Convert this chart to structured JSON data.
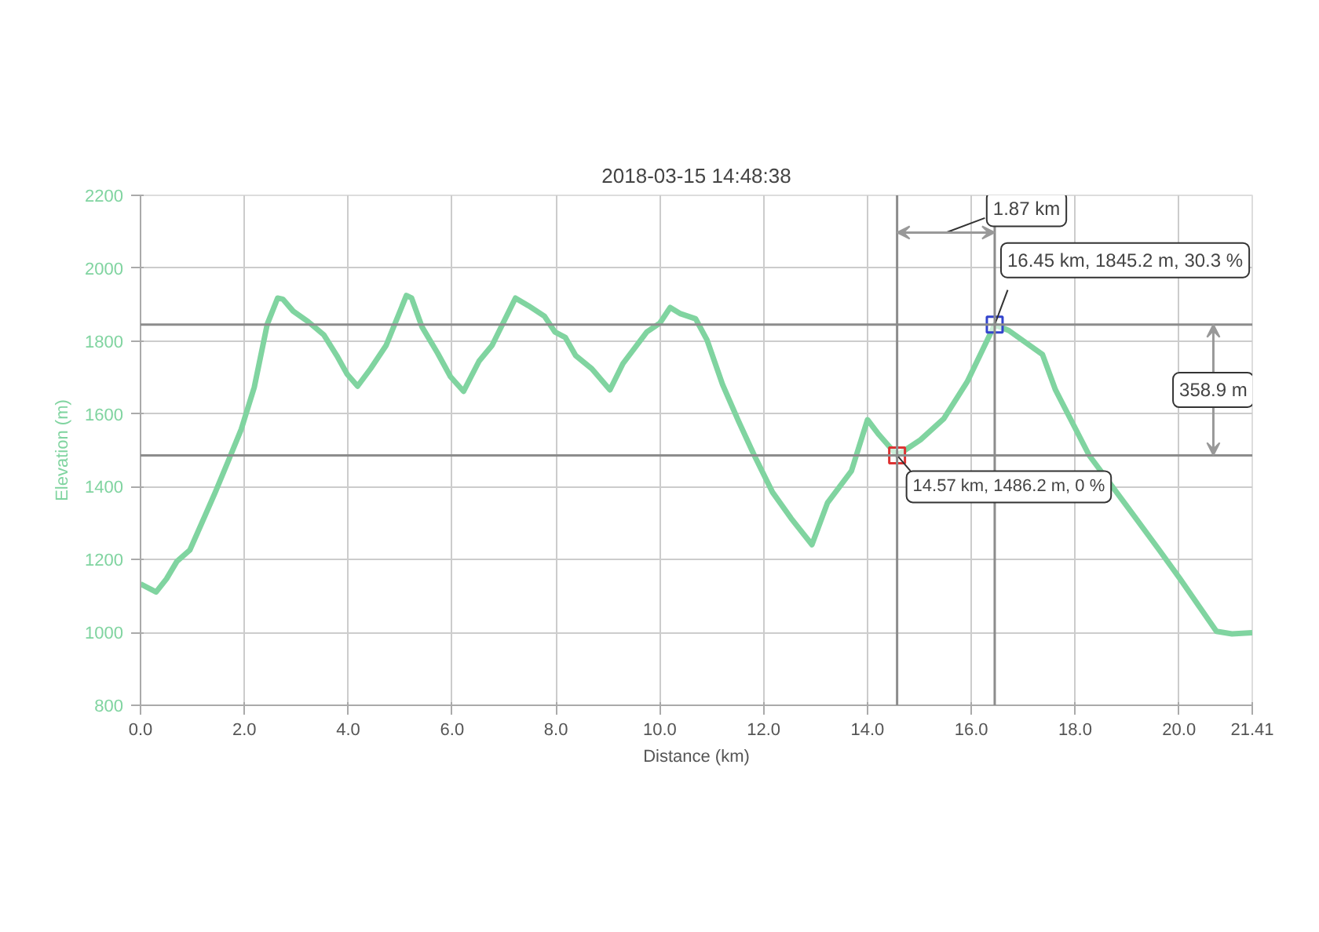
{
  "chart_data": {
    "type": "line",
    "title": "2018-03-15 14:48:38",
    "xlabel": "Distance (km)",
    "ylabel": "Elevation (m)",
    "xlim": [
      0,
      21.41
    ],
    "ylim": [
      800,
      2200
    ],
    "xticks": [
      {
        "value": 0,
        "label": "0.0"
      },
      {
        "value": 2,
        "label": "2.0"
      },
      {
        "value": 4,
        "label": "4.0"
      },
      {
        "value": 6,
        "label": "6.0"
      },
      {
        "value": 8,
        "label": "8.0"
      },
      {
        "value": 10,
        "label": "10.0"
      },
      {
        "value": 12,
        "label": "12.0"
      },
      {
        "value": 14,
        "label": "14.0"
      },
      {
        "value": 16,
        "label": "16.0"
      },
      {
        "value": 18,
        "label": "18.0"
      },
      {
        "value": 20,
        "label": "20.0"
      },
      {
        "value": 21.41,
        "label": "21.41"
      }
    ],
    "yticks": [
      800,
      1000,
      1200,
      1400,
      1600,
      1800,
      2000,
      2200
    ],
    "grid": true,
    "line_style": "solid",
    "marker": "none",
    "series": [
      {
        "color": "#80d4a0",
        "x": [
          0,
          0.3,
          0.5,
          0.7,
          0.95,
          1.24,
          1.44,
          1.69,
          1.94,
          2.19,
          2.44,
          2.64,
          2.74,
          2.94,
          3.23,
          3.53,
          3.78,
          3.98,
          4.18,
          4.43,
          4.73,
          5.12,
          5.22,
          5.42,
          5.72,
          5.97,
          6.22,
          6.52,
          6.77,
          7.22,
          7.47,
          7.78,
          7.98,
          8.18,
          8.38,
          8.69,
          9.04,
          9.29,
          9.75,
          10.0,
          10.2,
          10.4,
          10.69,
          10.91,
          11.21,
          11.52,
          11.82,
          12.17,
          12.53,
          12.93,
          13.23,
          13.69,
          14.0,
          14.22,
          14.57,
          15.02,
          15.47,
          15.92,
          16.45,
          16.72,
          17.37,
          17.62,
          18.27,
          19.02,
          19.62,
          20.02,
          20.72,
          21.02,
          21.41
        ],
        "values": [
          1133,
          1111,
          1147,
          1195,
          1226,
          1320,
          1385,
          1471,
          1558,
          1673,
          1846,
          1918,
          1915,
          1882,
          1853,
          1817,
          1760,
          1709,
          1676,
          1724,
          1788,
          1925,
          1918,
          1839,
          1767,
          1702,
          1662,
          1745,
          1788,
          1918,
          1897,
          1868,
          1825,
          1810,
          1760,
          1724,
          1666,
          1738,
          1825,
          1849,
          1892,
          1875,
          1861,
          1803,
          1680,
          1579,
          1486,
          1385,
          1313,
          1241,
          1356,
          1443,
          1584,
          1543,
          1486,
          1529,
          1587,
          1688,
          1845,
          1829,
          1763,
          1666,
          1486,
          1342,
          1226,
          1147,
          1003,
          996,
          999
        ]
      },
      {
        "type": "scatter",
        "marker": "square",
        "x": [
          14.57,
          16.45
        ],
        "values": [
          1486.2,
          1845.2
        ],
        "colors": [
          "#dd3333",
          "#3344cc"
        ]
      }
    ],
    "ref_lines": [
      {
        "axis": "y",
        "value": 1845.2,
        "color": "#8c8c8c"
      },
      {
        "axis": "y",
        "value": 1486.2,
        "color": "#8c8c8c"
      },
      {
        "axis": "x",
        "value": 14.57,
        "color": "#8c8c8c"
      },
      {
        "axis": "x",
        "value": 16.45,
        "color": "#8c8c8c"
      }
    ],
    "annotations": [
      "1.87 km",
      "358.9 m",
      {
        "text": "14.57 km, 1486.2 m, 0 %",
        "x": 14.57,
        "y": 1486.2
      },
      {
        "text": "16.45 km, 1845.2 m, 30.3 %",
        "x": 16.45,
        "y": 1845.2
      }
    ]
  }
}
